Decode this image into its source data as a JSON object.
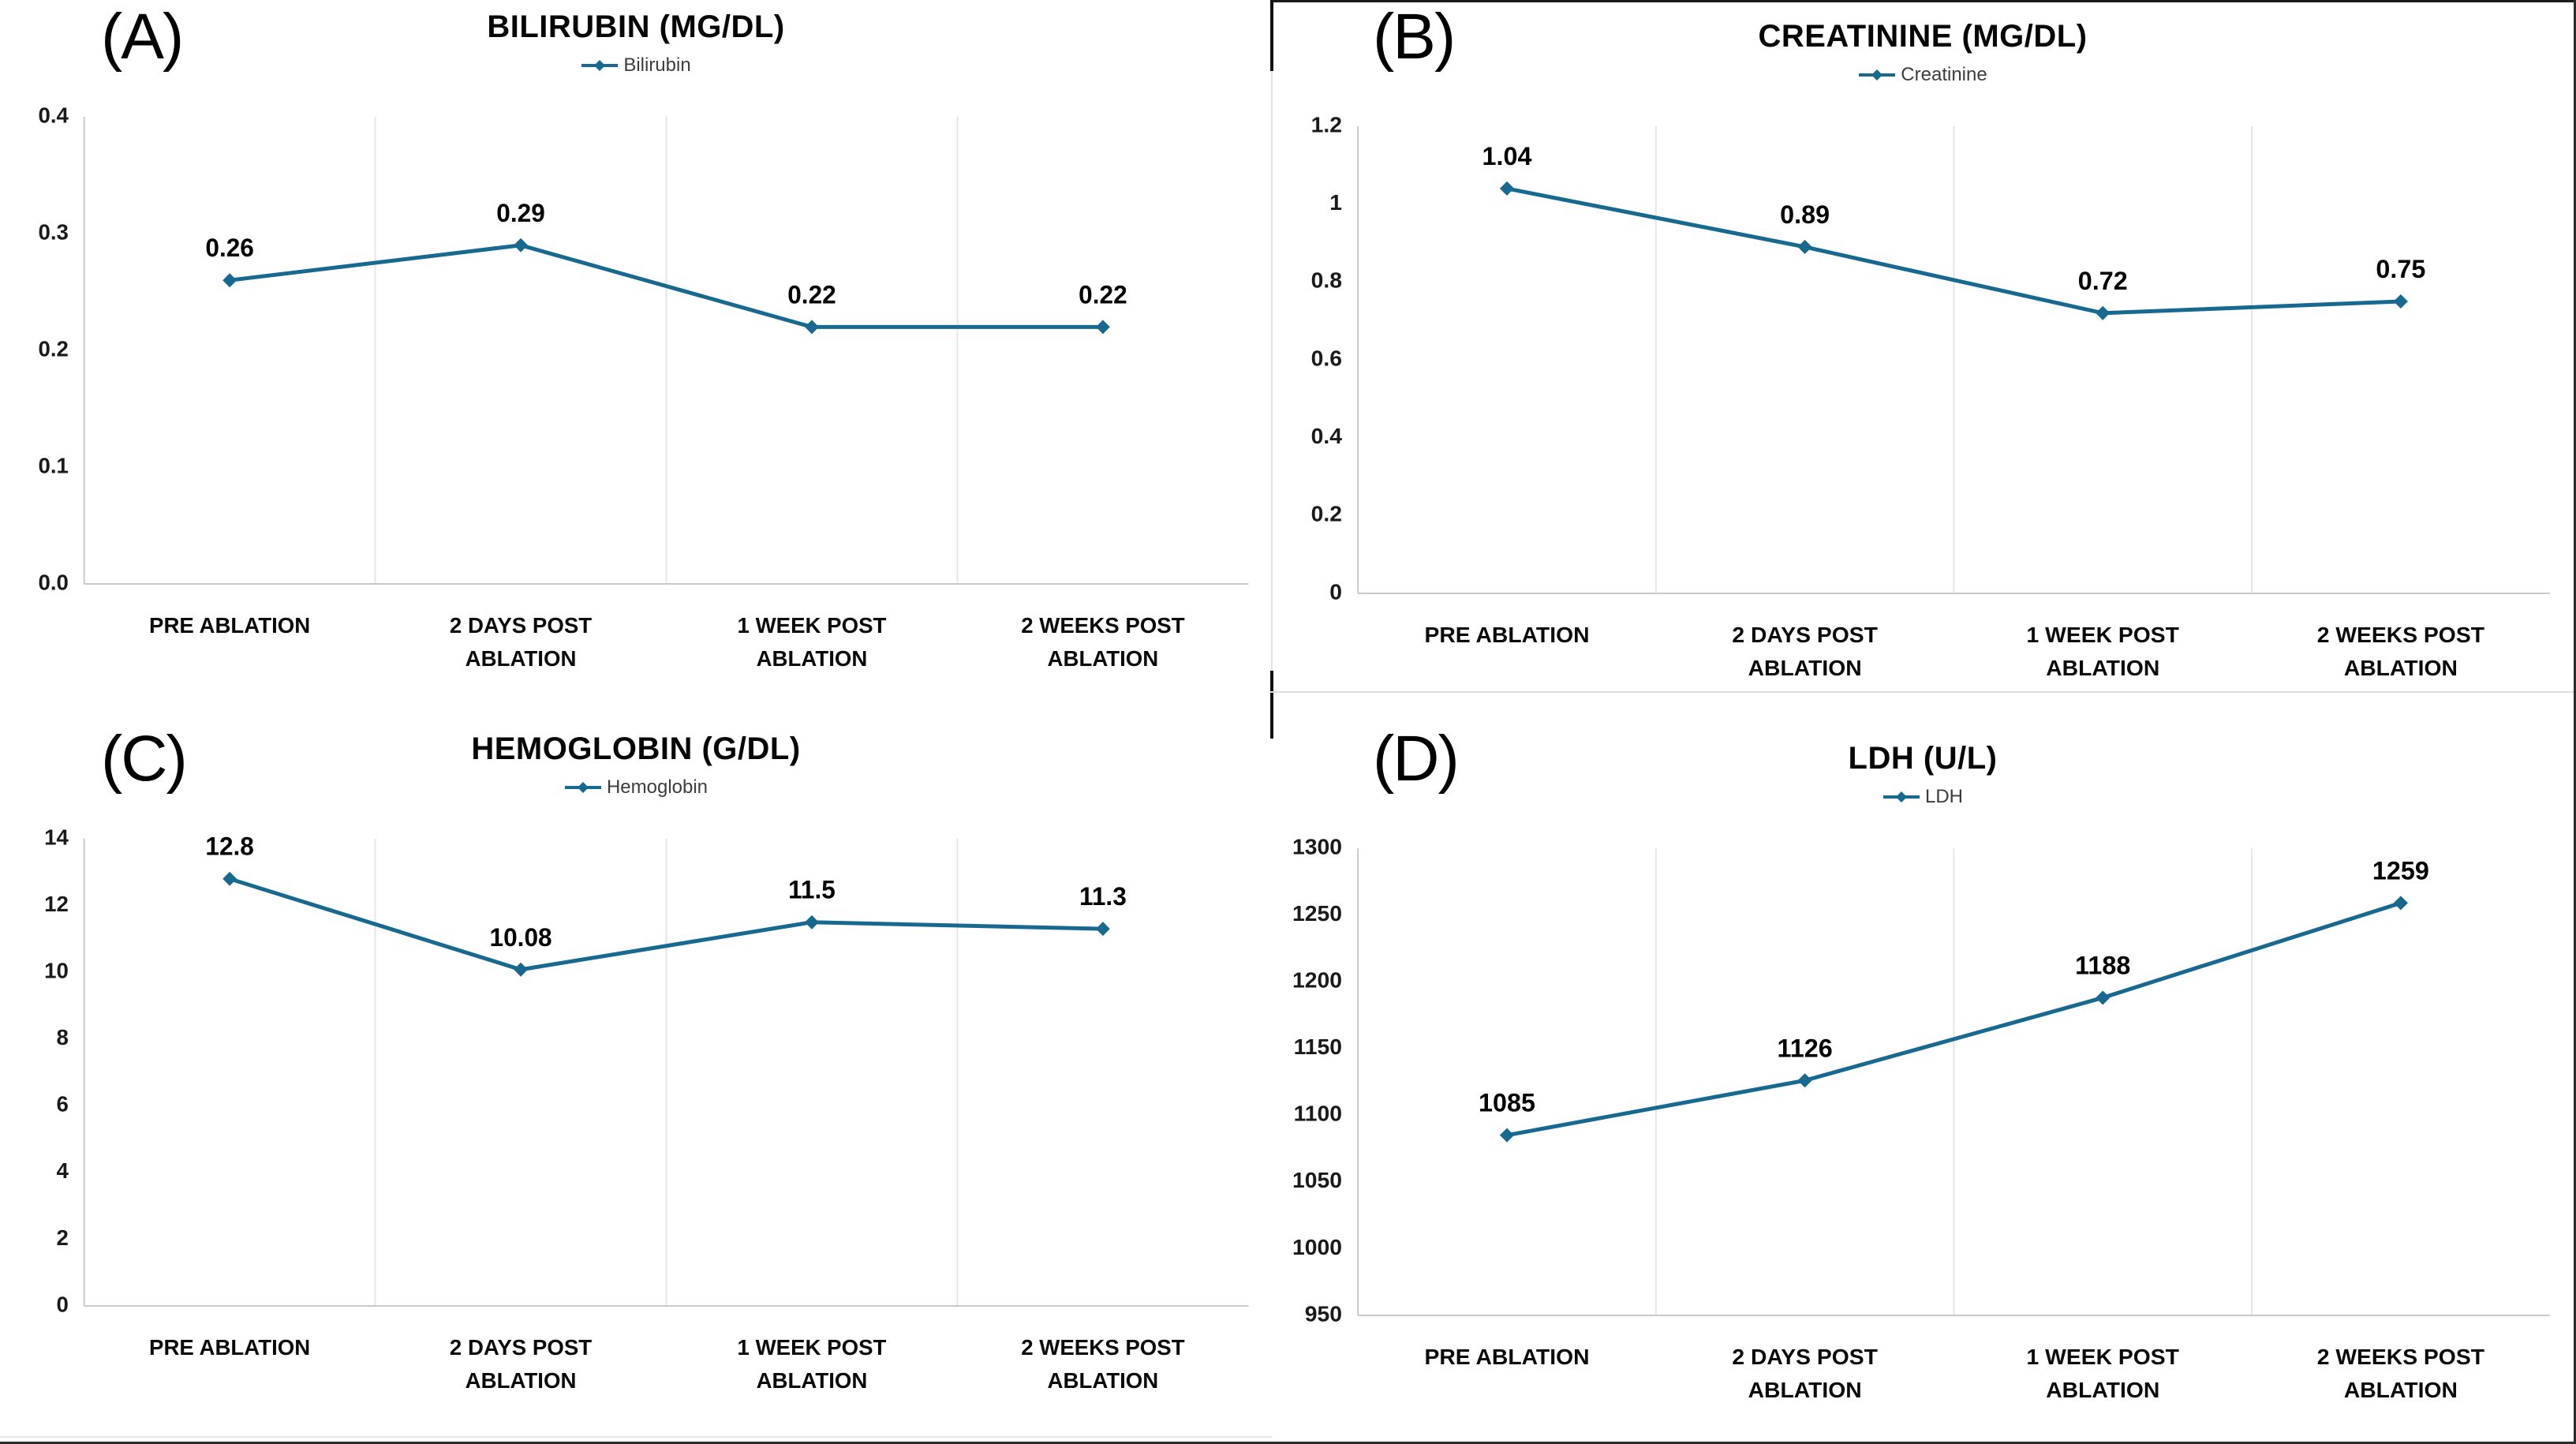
{
  "colors": {
    "line": "#17698F",
    "data_label": "#000000",
    "axis": "#c9c9c9",
    "grid": "#e6e6e6",
    "tick_label": "#1a1a1a",
    "x_label": "#0a0a0a",
    "legend_text": "#3d3d3d"
  },
  "chart_data": [
    {
      "type": "line",
      "panel_label": "(A)",
      "title": "BILIRUBIN (MG/DL)",
      "series_name": "Bilirubin",
      "categories": [
        "PRE ABLATION",
        "2 DAYS POST ABLATION",
        "1 WEEK POST ABLATION",
        "2 WEEKS POST ABLATION"
      ],
      "values": [
        0.26,
        0.29,
        0.22,
        0.22
      ],
      "data_labels": [
        "0.26",
        "0.29",
        "0.22",
        "0.22"
      ],
      "ylim": [
        0,
        0.4
      ],
      "yticks": [
        "0.0",
        "0.1",
        "0.2",
        "0.3",
        "0.4"
      ],
      "grid": "vertical-bands",
      "legend_position": "top"
    },
    {
      "type": "line",
      "panel_label": "(B)",
      "title": "CREATININE (MG/DL)",
      "series_name": "Creatinine",
      "categories": [
        "PRE ABLATION",
        "2 DAYS POST ABLATION",
        "1 WEEK POST ABLATION",
        "2 WEEKS POST ABLATION"
      ],
      "values": [
        1.04,
        0.89,
        0.72,
        0.75
      ],
      "data_labels": [
        "1.04",
        "0.89",
        "0.72",
        "0.75"
      ],
      "ylim": [
        0,
        1.2
      ],
      "yticks": [
        "0",
        "0.2",
        "0.4",
        "0.6",
        "0.8",
        "1",
        "1.2"
      ],
      "grid": "vertical-bands",
      "legend_position": "top"
    },
    {
      "type": "line",
      "panel_label": "(C)",
      "title": "HEMOGLOBIN (G/DL)",
      "series_name": "Hemoglobin",
      "categories": [
        "PRE ABLATION",
        "2 DAYS POST ABLATION",
        "1 WEEK POST ABLATION",
        "2 WEEKS POST ABLATION"
      ],
      "values": [
        12.8,
        10.08,
        11.5,
        11.3
      ],
      "data_labels": [
        "12.8",
        "10.08",
        "11.5",
        "11.3"
      ],
      "ylim": [
        0,
        14
      ],
      "yticks": [
        "0",
        "2",
        "4",
        "6",
        "8",
        "10",
        "12",
        "14"
      ],
      "grid": "vertical-bands",
      "legend_position": "top"
    },
    {
      "type": "line",
      "panel_label": "(D)",
      "title": "LDH (U/L)",
      "series_name": "LDH",
      "categories": [
        "PRE ABLATION",
        "2 DAYS POST ABLATION",
        "1 WEEK POST ABLATION",
        "2 WEEKS POST ABLATION"
      ],
      "values": [
        1085,
        1126,
        1188,
        1259
      ],
      "data_labels": [
        "1085",
        "1126",
        "1188",
        "1259"
      ],
      "ylim": [
        950,
        1300
      ],
      "yticks": [
        "950",
        "1000",
        "1050",
        "1100",
        "1150",
        "1200",
        "1250",
        "1300"
      ],
      "grid": "vertical-bands",
      "legend_position": "top"
    }
  ]
}
